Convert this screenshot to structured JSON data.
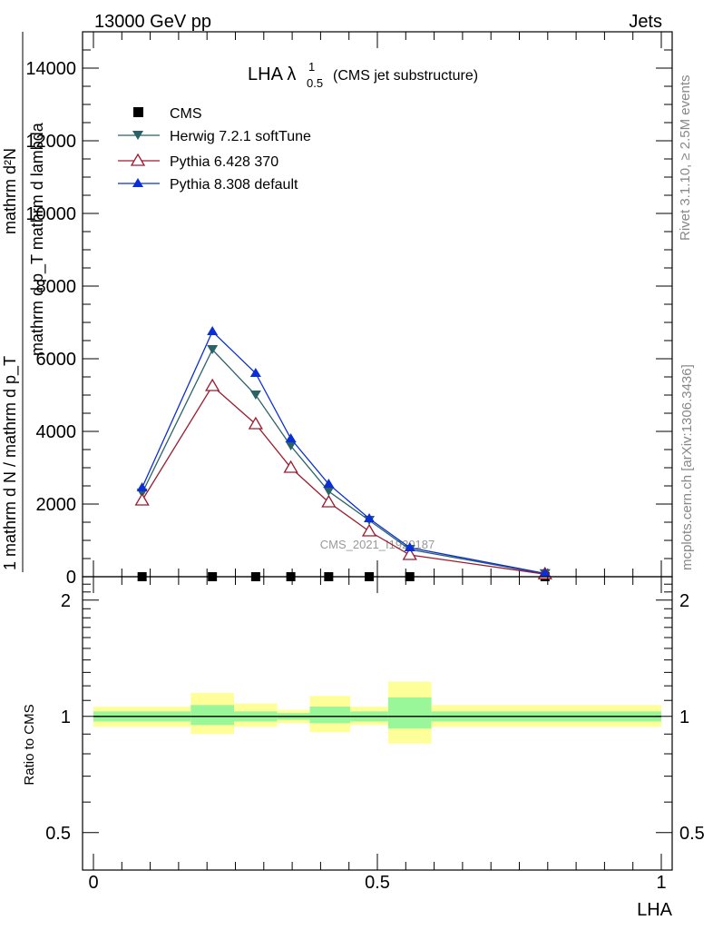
{
  "header": {
    "left": "13000 GeV pp",
    "right": "Jets"
  },
  "side_text": {
    "rivet": "Rivet 3.1.10, ≥ 2.5M events",
    "mcplots": "mcplots.cern.ch [arXiv:1306.3436]"
  },
  "title": {
    "main": "LHA λ",
    "sup": "1",
    "sub": "0.5",
    "suffix": "(CMS jet substructure)"
  },
  "watermark": "CMS_2021_I1920187",
  "colors": {
    "herwig": "#2a6266",
    "pythia6": "#9b1b30",
    "pythia8": "#0b2fd6",
    "band_inner": "#99f799",
    "band_outer": "#ffff99"
  },
  "chart_data": [
    {
      "type": "line",
      "ylabel_top": "mathrm d²N",
      "ylabel_mid": "mathrm d p_T mathrm d lambda",
      "ylabel_bottom": "1  mathrm d N / mathrm d p_T",
      "xlim": [
        0,
        1
      ],
      "ylim": [
        0,
        15000
      ],
      "yticks": [
        2000,
        4000,
        6000,
        8000,
        10000,
        12000,
        14000
      ],
      "ytick_labels": [
        "2000",
        "4000",
        "6000",
        "8000",
        "10000",
        "12000",
        "14000"
      ],
      "legend_position": "top-left",
      "series": [
        {
          "name": "CMS",
          "marker": "square",
          "x": [
            0.0857,
            0.2095,
            0.2857,
            0.3476,
            0.4143,
            0.4857,
            0.5571,
            0.7952
          ],
          "y": [
            0,
            0,
            0,
            0,
            0,
            0,
            0,
            0
          ]
        },
        {
          "name": "Herwig 7.2.1 softTune",
          "marker": "triangle-down",
          "x": [
            0.0857,
            0.2095,
            0.2857,
            0.3476,
            0.4143,
            0.4857,
            0.5571,
            0.7952
          ],
          "y": [
            2300,
            6250,
            5000,
            3600,
            2350,
            1550,
            750,
            80
          ]
        },
        {
          "name": "Pythia 6.428 370",
          "marker": "triangle-open",
          "x": [
            0.0857,
            0.2095,
            0.2857,
            0.3476,
            0.4143,
            0.4857,
            0.5571,
            0.7952
          ],
          "y": [
            2100,
            5250,
            4200,
            3000,
            2050,
            1250,
            600,
            70
          ]
        },
        {
          "name": "Pythia 8.308 default",
          "marker": "triangle-up",
          "x": [
            0.0857,
            0.2095,
            0.2857,
            0.3476,
            0.4143,
            0.4857,
            0.5571,
            0.7952
          ],
          "y": [
            2450,
            6750,
            5600,
            3800,
            2550,
            1600,
            800,
            90
          ]
        }
      ]
    },
    {
      "type": "area",
      "ylabel": "Ratio to CMS",
      "xlabel": "LHA",
      "xlim": [
        0,
        1
      ],
      "ylim": [
        0.4,
        2.3
      ],
      "log_scale_y": true,
      "yticks": [
        0.5,
        1,
        2
      ],
      "ytick_labels": [
        "0.5",
        "1",
        "2"
      ],
      "xticks": [
        0,
        0.5,
        1
      ],
      "xtick_labels": [
        "0",
        "0.5",
        "1"
      ],
      "bins": [
        {
          "x0": 0.0,
          "x1": 0.1714,
          "inner": [
            0.97,
            1.03
          ],
          "outer": [
            0.94,
            1.06
          ]
        },
        {
          "x0": 0.1714,
          "x1": 0.2476,
          "inner": [
            0.95,
            1.07
          ],
          "outer": [
            0.9,
            1.15
          ]
        },
        {
          "x0": 0.2476,
          "x1": 0.3238,
          "inner": [
            0.97,
            1.03
          ],
          "outer": [
            0.94,
            1.08
          ]
        },
        {
          "x0": 0.3238,
          "x1": 0.381,
          "inner": [
            0.98,
            1.02
          ],
          "outer": [
            0.96,
            1.04
          ]
        },
        {
          "x0": 0.381,
          "x1": 0.4524,
          "inner": [
            0.96,
            1.06
          ],
          "outer": [
            0.91,
            1.13
          ]
        },
        {
          "x0": 0.4524,
          "x1": 0.519,
          "inner": [
            0.97,
            1.03
          ],
          "outer": [
            0.95,
            1.06
          ]
        },
        {
          "x0": 0.519,
          "x1": 0.5952,
          "inner": [
            0.93,
            1.12
          ],
          "outer": [
            0.85,
            1.23
          ]
        },
        {
          "x0": 0.5952,
          "x1": 1.0,
          "inner": [
            0.97,
            1.03
          ],
          "outer": [
            0.94,
            1.07
          ]
        }
      ],
      "reference": 1
    }
  ]
}
